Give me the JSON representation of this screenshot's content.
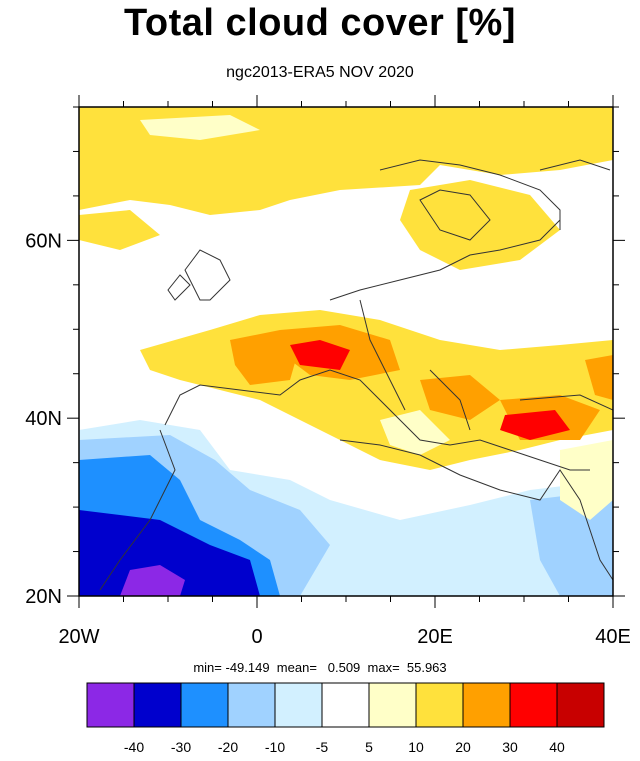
{
  "title": "Total cloud cover [%]",
  "subtitle": "ngc2013-ERA5 NOV 2020",
  "stats_line": "min= -49.149  mean=   0.509  max=  55.963",
  "axes": {
    "y_ticks": [
      {
        "value": 20,
        "label": "20N"
      },
      {
        "value": 40,
        "label": "40N"
      },
      {
        "value": 60,
        "label": "60N"
      }
    ],
    "x_ticks": [
      {
        "value": -20,
        "label": "20W"
      },
      {
        "value": 0,
        "label": "0"
      },
      {
        "value": 20,
        "label": "20E"
      },
      {
        "value": 40,
        "label": "40E"
      }
    ],
    "lon_range": [
      -20,
      40
    ],
    "lat_range": [
      20,
      75
    ]
  },
  "colorbar": {
    "colors": [
      "#8c28e6",
      "#0000cd",
      "#1e90ff",
      "#a0d2ff",
      "#d2f0ff",
      "#ffffff",
      "#ffffc8",
      "#ffe13c",
      "#ffa000",
      "#ff0000",
      "#c80000"
    ],
    "labels": [
      "-40",
      "-30",
      "-20",
      "-10",
      "-5",
      "5",
      "10",
      "20",
      "30",
      "40"
    ]
  }
}
